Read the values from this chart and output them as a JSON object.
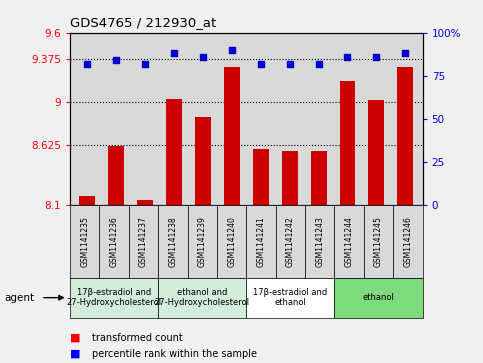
{
  "title": "GDS4765 / 212930_at",
  "samples": [
    "GSM1141235",
    "GSM1141236",
    "GSM1141237",
    "GSM1141238",
    "GSM1141239",
    "GSM1141240",
    "GSM1141241",
    "GSM1141242",
    "GSM1141243",
    "GSM1141244",
    "GSM1141245",
    "GSM1141246"
  ],
  "bar_values": [
    8.18,
    8.61,
    8.14,
    9.02,
    8.87,
    9.3,
    8.59,
    8.57,
    8.57,
    9.18,
    9.01,
    9.3
  ],
  "percentile_values": [
    82,
    84,
    82,
    88,
    86,
    90,
    82,
    82,
    82,
    86,
    86,
    88
  ],
  "bar_color": "#cc0000",
  "dot_color": "#0000cc",
  "ylim_left": [
    8.1,
    9.6
  ],
  "ylim_right": [
    0,
    100
  ],
  "yticks_left": [
    8.1,
    8.625,
    9.0,
    9.375,
    9.6
  ],
  "ytick_labels_left": [
    "8.1",
    "8.625",
    "9",
    "9.375",
    "9.6"
  ],
  "yticks_right": [
    0,
    25,
    50,
    75,
    100
  ],
  "ytick_labels_right": [
    "0",
    "25",
    "50",
    "75",
    "100%"
  ],
  "grid_values": [
    8.625,
    9.0,
    9.375
  ],
  "agent_groups": [
    {
      "label": "17β-estradiol and\n27-Hydroxycholesterol",
      "start": 0,
      "end": 3,
      "color": "#d4edda"
    },
    {
      "label": "ethanol and\n27-Hydroxycholesterol",
      "start": 3,
      "end": 6,
      "color": "#d4edda"
    },
    {
      "label": "17β-estradiol and\nethanol",
      "start": 6,
      "end": 9,
      "color": "#ffffff"
    },
    {
      "label": "ethanol",
      "start": 9,
      "end": 12,
      "color": "#7ddb7d"
    }
  ],
  "bar_width": 0.55,
  "plot_bg_color": "#d9d9d9",
  "tick_box_color": "#d9d9d9",
  "fig_bg_color": "#f0f0f0"
}
